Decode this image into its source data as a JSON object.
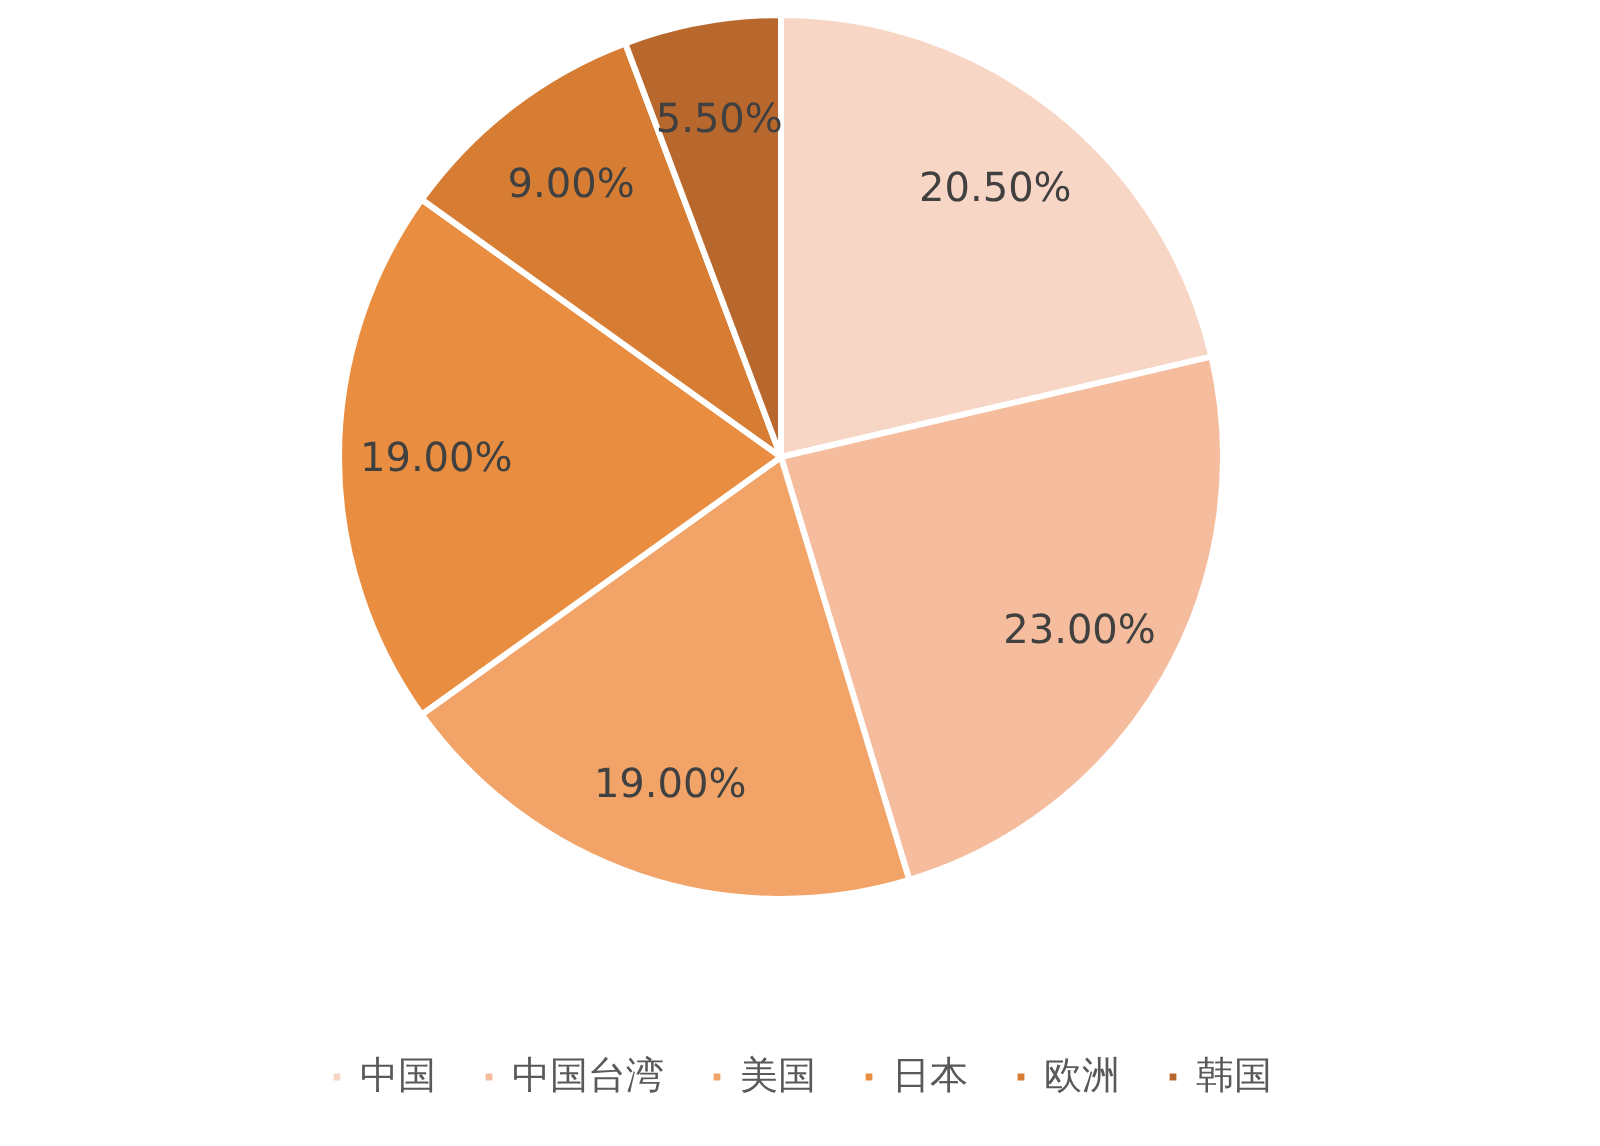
{
  "chart_data": {
    "type": "pie",
    "categories": [
      "中国",
      "中国台湾",
      "美国",
      "日本",
      "欧洲",
      "韩国"
    ],
    "values": [
      20.5,
      23,
      19,
      19,
      9,
      5.5
    ],
    "colors": [
      "#f8d6c6",
      "#f5bc9d",
      "#f2a468",
      "#e98d40",
      "#d67d33",
      "#b9682d"
    ],
    "value_labels": [
      "20.50%",
      "23.00%",
      "19.00%",
      "19.00%",
      "9.00%",
      "5.50%"
    ],
    "legend": "bottom"
  }
}
